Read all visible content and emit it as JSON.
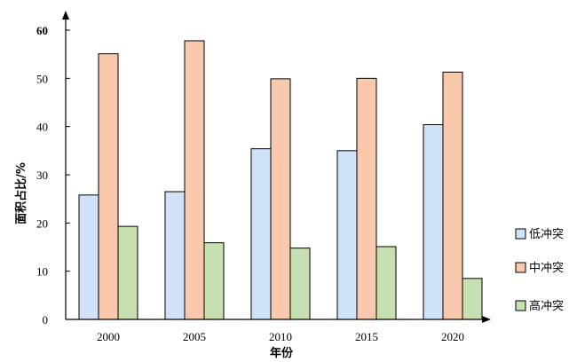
{
  "chart_data": {
    "type": "bar",
    "title": "",
    "xlabel": "年份",
    "ylabel": "面积占比/%",
    "categories": [
      "2000",
      "2005",
      "2010",
      "2015",
      "2020"
    ],
    "ylim": [
      0,
      60
    ],
    "yticks": [
      0,
      10,
      20,
      30,
      40,
      50,
      60
    ],
    "grid": false,
    "legend_position": "right",
    "series": [
      {
        "name": "低冲突",
        "color": "#cfe2f7",
        "values": [
          25.8,
          26.5,
          35.4,
          35.0,
          40.4
        ]
      },
      {
        "name": "中冲突",
        "color": "#f8c9ac",
        "values": [
          55.1,
          57.8,
          49.9,
          50.0,
          51.3
        ]
      },
      {
        "name": "高冲突",
        "color": "#c6e0b1",
        "values": [
          19.3,
          15.9,
          14.8,
          15.1,
          8.5
        ]
      }
    ]
  }
}
